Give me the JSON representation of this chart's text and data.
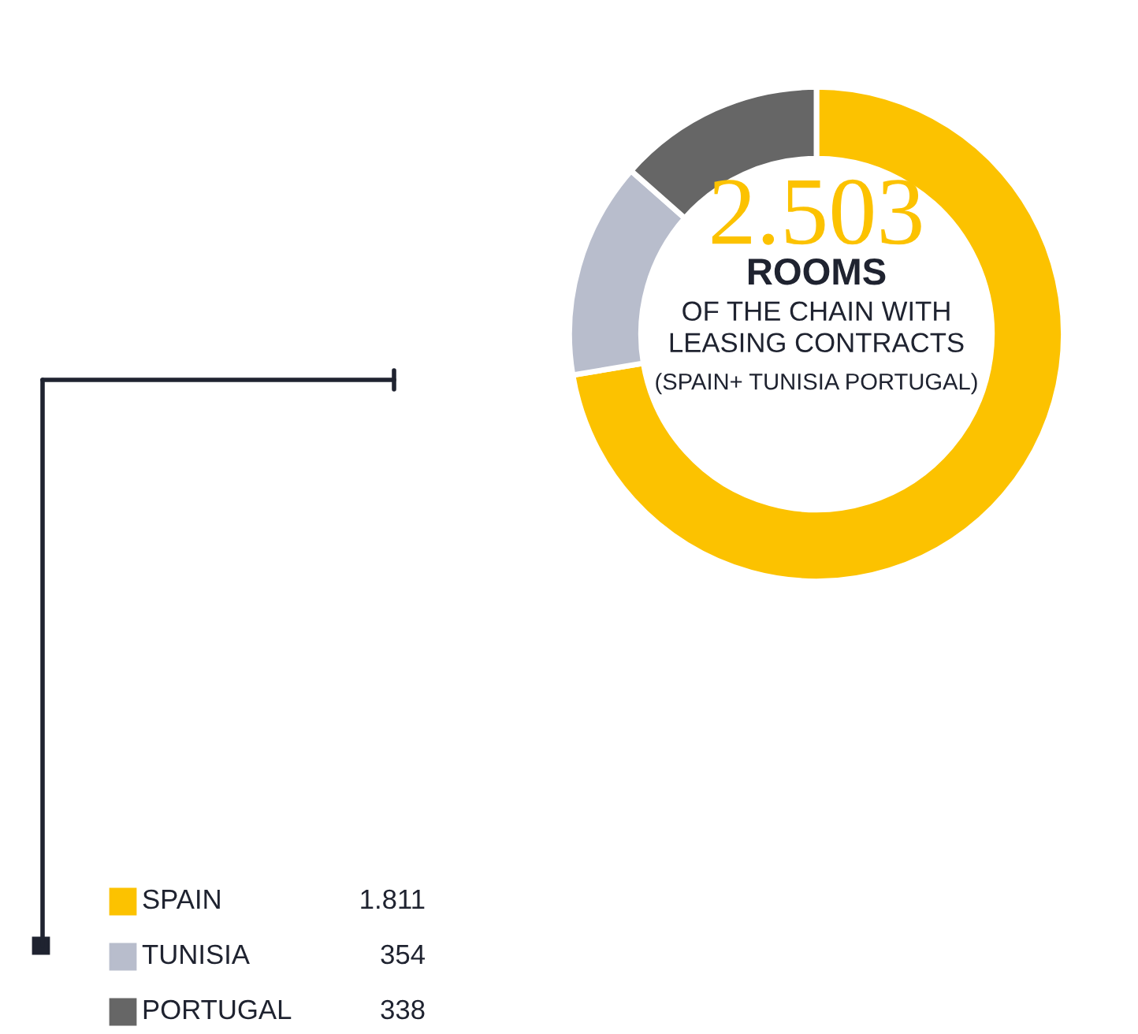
{
  "chart_data": {
    "type": "donut",
    "categories": [
      "SPAIN",
      "TUNISIA",
      "PORTUGAL"
    ],
    "values": [
      1811,
      354,
      338
    ],
    "value_labels": [
      "1.811",
      "354",
      "338"
    ],
    "colors": [
      "#fcc200",
      "#b8bdcc",
      "#666666"
    ],
    "annotations": [
      "2.503",
      "ROOMS",
      "OF THE CHAIN WITH\nLEASING CONTRACTS",
      "(SPAIN+ TUNISIA PORTUGAL)"
    ],
    "legend": "bottom left"
  }
}
